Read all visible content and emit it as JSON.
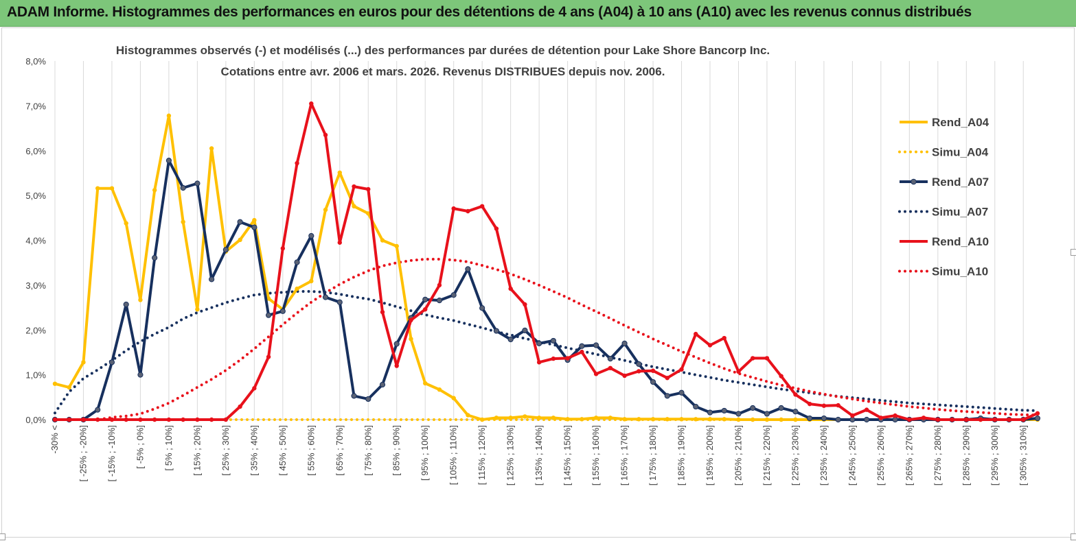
{
  "banner": {
    "title": "ADAM Informe. Histogrammes des performances en euros pour des détentions de 4 ans (A04) à 10 ans (A10) avec les revenus connus distribués",
    "color": "#7dc67a"
  },
  "chart_data": {
    "type": "line",
    "title": [
      "Histogrammes observés (-) et modélisés (...) des performances par durées de détention pour Lake Shore Bancorp Inc.",
      "Cotations entre avr. 2006 et mars. 2026. Revenus DISTRIBUES depuis nov. 2006."
    ],
    "ylim": [
      0,
      8
    ],
    "yticks": [
      "0,0%",
      "1,0%",
      "2,0%",
      "3,0%",
      "4,0%",
      "5,0%",
      "6,0%",
      "7,0%",
      "8,0%"
    ],
    "grid": "vertical",
    "legend_position": "right",
    "categories": [
      "-30% <",
      "[ -30% ; -25%]",
      "[ -25% ; -20%]",
      "[ -20% ; -15%]",
      "[ -15% ; -10%]",
      "[ -10% ; -5%]",
      "[ -5% ; 0%]",
      "[ 0% ; 5%]",
      "[ 5% ; 10%]",
      "[ 10% ; 15%]",
      "[ 15% ; 20%]",
      "[ 20% ; 25%]",
      "[ 25% ; 30%]",
      "[ 30% ; 35%]",
      "[ 35% ; 40%]",
      "[ 40% ; 45%]",
      "[ 45% ; 50%]",
      "[ 50% ; 55%]",
      "[ 55% ; 60%]",
      "[ 60% ; 65%]",
      "[ 65% ; 70%]",
      "[ 70% ; 75%]",
      "[ 75% ; 80%]",
      "[ 80% ; 85%]",
      "[ 85% ; 90%]",
      "[ 90% ; 95%]",
      "[ 95% ; 100%]",
      "[ 100% ; 105%]",
      "[ 105% ; 110%]",
      "[ 110% ; 115%]",
      "[ 115% ; 120%]",
      "[ 120% ; 125%]",
      "[ 125% ; 130%]",
      "[ 130% ; 135%]",
      "[ 135% ; 140%]",
      "[ 140% ; 145%]",
      "[ 145% ; 150%]",
      "[ 150% ; 155%]",
      "[ 155% ; 160%]",
      "[ 160% ; 165%]",
      "[ 165% ; 170%]",
      "[ 170% ; 175%]",
      "[ 175% ; 180%]",
      "[ 180% ; 185%]",
      "[ 185% ; 190%]",
      "[ 190% ; 195%]",
      "[ 195% ; 200%]",
      "[ 200% ; 205%]",
      "[ 205% ; 210%]",
      "[ 210% ; 215%]",
      "[ 215% ; 220%]",
      "[ 220% ; 225%]",
      "[ 225% ; 230%]",
      "[ 230% ; 235%]",
      "[ 235% ; 240%]",
      "[ 240% ; 245%]",
      "[ 245% ; 250%]",
      "[ 250% ; 255%]",
      "[ 255% ; 260%]",
      "[ 260% ; 265%]",
      "[ 265% ; 270%]",
      "[ 270% ; 275%]",
      "[ 275% ; 280%]",
      "[ 280% ; 285%]",
      "[ 285% ; 290%]",
      "[ 290% ; 295%]",
      "[ 295% ; 300%]",
      "[ 300% ; 305%]",
      "[ 305% ; 310%]",
      "[ 310% ; 315%]"
    ],
    "series": [
      {
        "name": "Rend_A04",
        "style": "solid",
        "markers": false,
        "color": "#ffc000",
        "values": [
          0.8,
          0.72,
          1.28,
          5.16,
          5.16,
          4.38,
          2.67,
          5.12,
          6.78,
          4.41,
          2.46,
          6.05,
          3.75,
          4.01,
          4.45,
          2.7,
          2.46,
          2.92,
          3.09,
          4.68,
          5.51,
          4.76,
          4.6,
          4.0,
          3.87,
          1.8,
          0.81,
          0.67,
          0.48,
          0.1,
          0.0,
          0.04,
          0.04,
          0.07,
          0.04,
          0.04,
          0.01,
          0.01,
          0.04,
          0.04,
          0.01,
          0.01,
          0.01,
          0.01,
          0.01,
          0.01,
          0.01,
          0.01,
          0.0,
          0.0,
          0.0,
          0.0,
          0.0,
          0.0,
          0.0,
          0.0,
          0.0,
          0.0,
          0.0,
          0.0,
          0.0,
          0.0,
          0.0,
          0.0,
          0.0,
          0.0,
          0.0,
          0.0,
          0.0,
          0.0
        ]
      },
      {
        "name": "Simu_A04",
        "style": "dotted",
        "markers": false,
        "color": "#ffc000",
        "values": [
          0.0,
          0.0,
          0.0,
          0.0,
          0.0,
          0.0,
          0.0,
          0.0,
          0.0,
          0.0,
          0.0,
          0.0,
          0.0,
          0.0,
          0.0,
          0.0,
          0.0,
          0.0,
          0.0,
          0.0,
          0.0,
          0.0,
          0.0,
          0.0,
          0.0,
          0.0,
          0.0,
          0.0,
          0.0,
          0.0,
          0.0,
          0.0,
          0.0,
          0.0,
          0.0,
          0.0,
          0.0,
          0.0,
          0.0,
          0.0,
          0.0,
          0.0,
          0.0,
          0.0,
          0.0,
          0.0,
          0.0,
          0.0,
          0.0,
          0.0,
          0.0,
          0.0,
          0.0,
          0.0,
          0.0,
          0.0,
          0.0,
          0.0,
          0.0,
          0.0,
          0.0,
          0.0,
          0.0,
          0.0,
          0.0,
          0.0,
          0.0,
          0.0,
          0.0,
          0.0
        ]
      },
      {
        "name": "Rend_A07",
        "style": "solid",
        "markers": true,
        "color": "#17305e",
        "values": [
          0.0,
          0.0,
          0.0,
          0.22,
          1.28,
          2.57,
          1.0,
          3.61,
          5.78,
          5.17,
          5.27,
          3.13,
          3.79,
          4.41,
          4.29,
          2.33,
          2.42,
          3.51,
          4.1,
          2.73,
          2.62,
          0.53,
          0.46,
          0.78,
          1.69,
          2.27,
          2.68,
          2.66,
          2.78,
          3.36,
          2.49,
          1.98,
          1.79,
          1.99,
          1.7,
          1.76,
          1.33,
          1.64,
          1.66,
          1.36,
          1.7,
          1.24,
          0.84,
          0.53,
          0.6,
          0.29,
          0.16,
          0.2,
          0.13,
          0.26,
          0.13,
          0.26,
          0.18,
          0.03,
          0.03,
          0.0,
          0.0,
          0.0,
          0.0,
          0.0,
          0.0,
          0.0,
          0.0,
          0.0,
          0.0,
          0.03,
          0.0,
          0.0,
          0.0,
          0.03
        ]
      },
      {
        "name": "Simu_A07",
        "style": "dotted",
        "markers": false,
        "color": "#17305e",
        "values": [
          0.15,
          0.62,
          0.92,
          1.11,
          1.32,
          1.54,
          1.74,
          1.91,
          2.06,
          2.25,
          2.39,
          2.5,
          2.61,
          2.7,
          2.78,
          2.82,
          2.84,
          2.86,
          2.86,
          2.84,
          2.8,
          2.74,
          2.69,
          2.61,
          2.52,
          2.43,
          2.34,
          2.27,
          2.21,
          2.13,
          2.05,
          1.96,
          1.89,
          1.81,
          1.74,
          1.67,
          1.6,
          1.53,
          1.46,
          1.39,
          1.32,
          1.25,
          1.18,
          1.12,
          1.06,
          1.0,
          0.94,
          0.88,
          0.83,
          0.78,
          0.73,
          0.68,
          0.64,
          0.6,
          0.56,
          0.52,
          0.49,
          0.46,
          0.43,
          0.4,
          0.37,
          0.35,
          0.33,
          0.31,
          0.29,
          0.27,
          0.25,
          0.23,
          0.21,
          0.2
        ]
      },
      {
        "name": "Rend_A10",
        "style": "solid",
        "markers": false,
        "color": "#e8111b",
        "values": [
          0.0,
          0.0,
          0.0,
          0.0,
          0.0,
          0.0,
          0.0,
          0.0,
          0.0,
          0.0,
          0.0,
          0.0,
          0.0,
          0.29,
          0.7,
          1.4,
          3.82,
          5.72,
          7.05,
          6.35,
          3.95,
          5.2,
          5.14,
          2.4,
          1.2,
          2.22,
          2.46,
          3.0,
          4.71,
          4.65,
          4.76,
          4.26,
          2.92,
          2.57,
          1.28,
          1.36,
          1.37,
          1.51,
          1.02,
          1.15,
          0.98,
          1.08,
          1.09,
          0.93,
          1.12,
          1.91,
          1.66,
          1.82,
          1.07,
          1.37,
          1.37,
          0.97,
          0.56,
          0.35,
          0.31,
          0.32,
          0.09,
          0.22,
          0.04,
          0.09,
          0.0,
          0.04,
          0.0,
          0.0,
          0.0,
          0.0,
          0.0,
          0.0,
          0.0,
          0.14
        ]
      },
      {
        "name": "Simu_A10",
        "style": "dotted",
        "markers": false,
        "color": "#e8111b",
        "values": [
          0.0,
          0.0,
          0.0,
          0.0,
          0.05,
          0.08,
          0.13,
          0.24,
          0.37,
          0.54,
          0.72,
          0.9,
          1.1,
          1.33,
          1.58,
          1.85,
          2.12,
          2.38,
          2.62,
          2.83,
          3.02,
          3.18,
          3.32,
          3.43,
          3.5,
          3.55,
          3.58,
          3.58,
          3.56,
          3.52,
          3.44,
          3.35,
          3.25,
          3.13,
          3.0,
          2.86,
          2.72,
          2.56,
          2.41,
          2.26,
          2.1,
          1.95,
          1.8,
          1.66,
          1.52,
          1.39,
          1.26,
          1.14,
          1.03,
          0.94,
          0.85,
          0.77,
          0.7,
          0.63,
          0.57,
          0.51,
          0.46,
          0.41,
          0.37,
          0.33,
          0.29,
          0.26,
          0.23,
          0.2,
          0.18,
          0.16,
          0.14,
          0.12,
          0.11,
          0.1
        ]
      }
    ]
  }
}
